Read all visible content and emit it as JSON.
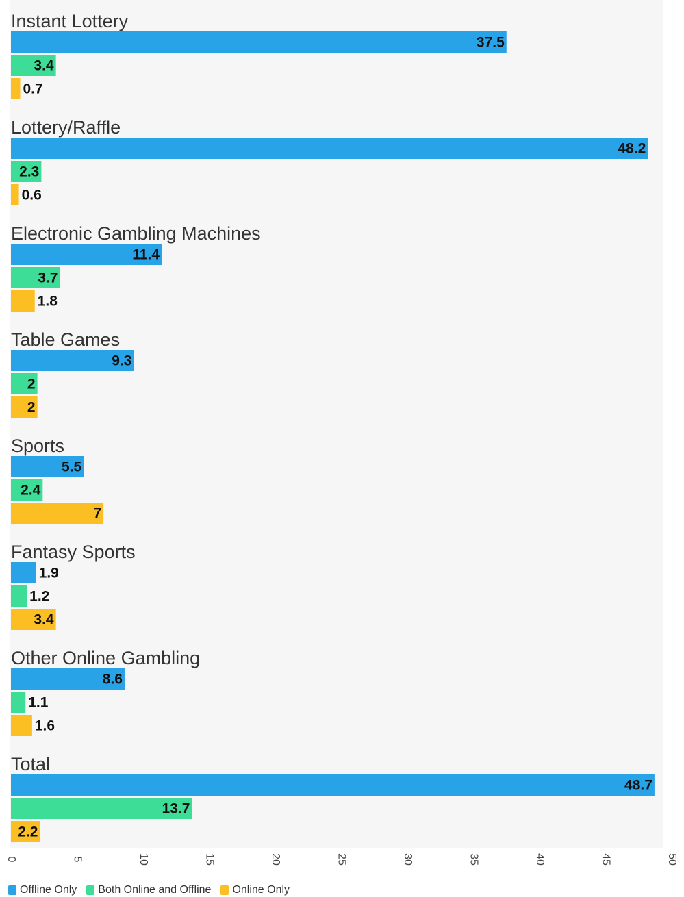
{
  "colors": {
    "offline_only": "#29a3e8",
    "both": "#3ddc97",
    "online_only": "#fbbf24"
  },
  "chart_data": {
    "type": "bar",
    "orientation": "horizontal",
    "title": "",
    "xlabel": "",
    "ylabel": "",
    "xlim": [
      0,
      50
    ],
    "x_ticks": [
      0,
      5,
      10,
      15,
      20,
      25,
      30,
      35,
      40,
      45,
      50
    ],
    "grid": false,
    "legend_position": "bottom-left",
    "categories": [
      "Instant Lottery",
      "Lottery/Raffle",
      "Electronic Gambling Machines",
      "Table Games",
      "Sports",
      "Fantasy Sports",
      "Other Online Gambling",
      "Total"
    ],
    "series": [
      {
        "name": "Offline Only",
        "color": "#29a3e8",
        "values": [
          37.5,
          48.2,
          11.4,
          9.3,
          5.5,
          1.9,
          8.6,
          48.7
        ]
      },
      {
        "name": "Both Online and Offline",
        "color": "#3ddc97",
        "values": [
          3.4,
          2.3,
          3.7,
          2,
          2.4,
          1.2,
          1.1,
          13.7
        ]
      },
      {
        "name": "Online Only",
        "color": "#fbbf24",
        "values": [
          0.7,
          0.6,
          1.8,
          2,
          7,
          3.4,
          1.6,
          2.2
        ]
      }
    ]
  }
}
